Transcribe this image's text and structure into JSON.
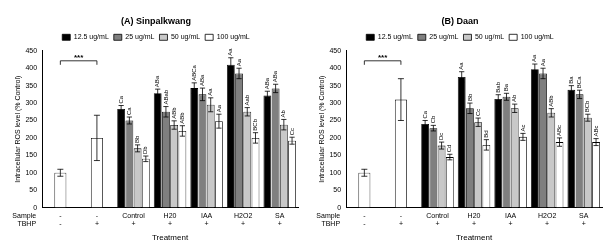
{
  "chart_data": [
    {
      "type": "bar",
      "title": "(A) Sinpalkwang",
      "y_label": "Intracellular ROS level (% Control)",
      "x_label": "Treatment",
      "row_labels": [
        "Sample",
        "TBHP"
      ],
      "categories": [
        "-",
        "-",
        "Control",
        "H20",
        "IAA",
        "H2O2",
        "SA"
      ],
      "tbhp": [
        "-",
        "+",
        "+",
        "+",
        "+",
        "+",
        "+"
      ],
      "ylim": [
        0,
        450
      ],
      "yticks": [
        0,
        50,
        100,
        150,
        200,
        250,
        300,
        350,
        400,
        450
      ],
      "grid": false,
      "legend": "top",
      "reference": {
        "color": "#ffffff",
        "values": [
          100,
          200,
          null,
          null,
          null,
          null,
          null
        ],
        "errors": [
          10,
          65,
          null,
          null,
          null,
          null,
          null
        ],
        "significance": "***"
      },
      "series": [
        {
          "name": "12.5 ug/mL",
          "color": "#000000",
          "values": [
            null,
            null,
            283,
            328,
            343,
            410,
            322
          ],
          "errors": [
            null,
            null,
            10,
            12,
            15,
            20,
            12
          ],
          "letters": [
            null,
            null,
            "Ca",
            "ABa",
            "ABCa",
            "Aa",
            "ABa"
          ]
        },
        {
          "name": "25 ug/mL",
          "color": "#7f7f7f",
          "values": [
            null,
            null,
            250,
            275,
            325,
            385,
            342
          ],
          "errors": [
            null,
            null,
            10,
            15,
            18,
            15,
            12
          ],
          "letters": [
            null,
            null,
            "Ca",
            "ABab",
            "ABa",
            "Aa",
            "ABa"
          ]
        },
        {
          "name": "50 ug/mL",
          "color": "#c8c8c8",
          "values": [
            null,
            null,
            170,
            237,
            295,
            275,
            238
          ],
          "errors": [
            null,
            null,
            10,
            12,
            20,
            12,
            15
          ],
          "letters": [
            null,
            null,
            "Bb",
            "ABb",
            "Aa",
            "Aab",
            "Ab"
          ]
        },
        {
          "name": "100 ug/mL",
          "color": "#ffffff",
          "values": [
            null,
            null,
            140,
            220,
            248,
            200,
            192
          ],
          "errors": [
            null,
            null,
            8,
            15,
            20,
            15,
            10
          ],
          "letters": [
            null,
            null,
            "Db",
            "ABb",
            "Aa",
            "BCb",
            "Cc"
          ]
        }
      ]
    },
    {
      "type": "bar",
      "title": "(B) Daan",
      "y_label": "Intracellular ROS level (% Control)",
      "x_label": "Treatment",
      "row_labels": [
        "Sample",
        "TBHP"
      ],
      "categories": [
        "-",
        "-",
        "Control",
        "H20",
        "IAA",
        "H2O2",
        "SA"
      ],
      "tbhp": [
        "-",
        "+",
        "+",
        "+",
        "+",
        "+",
        "+"
      ],
      "ylim": [
        0,
        450
      ],
      "yticks": [
        0,
        50,
        100,
        150,
        200,
        250,
        300,
        350,
        400,
        450
      ],
      "grid": false,
      "legend": "top",
      "reference": {
        "color": "#ffffff",
        "values": [
          100,
          310,
          null,
          null,
          null,
          null,
          null
        ],
        "errors": [
          10,
          60,
          null,
          null,
          null,
          null,
          null
        ],
        "significance": "***"
      },
      "series": [
        {
          "name": "12.5 ug/mL",
          "color": "#000000",
          "values": [
            null,
            null,
            240,
            375,
            312,
            397,
            338
          ],
          "errors": [
            null,
            null,
            10,
            15,
            12,
            15,
            12
          ],
          "letters": [
            null,
            null,
            "Ca",
            "Aa",
            "Bab",
            "Aa",
            "Ba"
          ]
        },
        {
          "name": "25 ug/mL",
          "color": "#7f7f7f",
          "values": [
            null,
            null,
            228,
            285,
            318,
            385,
            325
          ],
          "errors": [
            null,
            null,
            8,
            15,
            10,
            15,
            12
          ],
          "letters": [
            null,
            null,
            "Cb",
            "Bb",
            "Ba",
            "Aa",
            "BCa"
          ]
        },
        {
          "name": "50 ug/mL",
          "color": "#c8c8c8",
          "values": [
            null,
            null,
            178,
            245,
            285,
            272,
            258
          ],
          "errors": [
            null,
            null,
            10,
            12,
            12,
            12,
            10
          ],
          "letters": [
            null,
            null,
            "Dc",
            "Cc",
            "Ab",
            "ABb",
            "BCb"
          ]
        },
        {
          "name": "100 ug/mL",
          "color": "#ffffff",
          "values": [
            null,
            null,
            145,
            180,
            203,
            188,
            188
          ],
          "errors": [
            null,
            null,
            8,
            15,
            10,
            12,
            10
          ],
          "letters": [
            null,
            null,
            "Cd",
            "Bd",
            "Ac",
            "ABc",
            "ABc"
          ]
        }
      ]
    }
  ]
}
